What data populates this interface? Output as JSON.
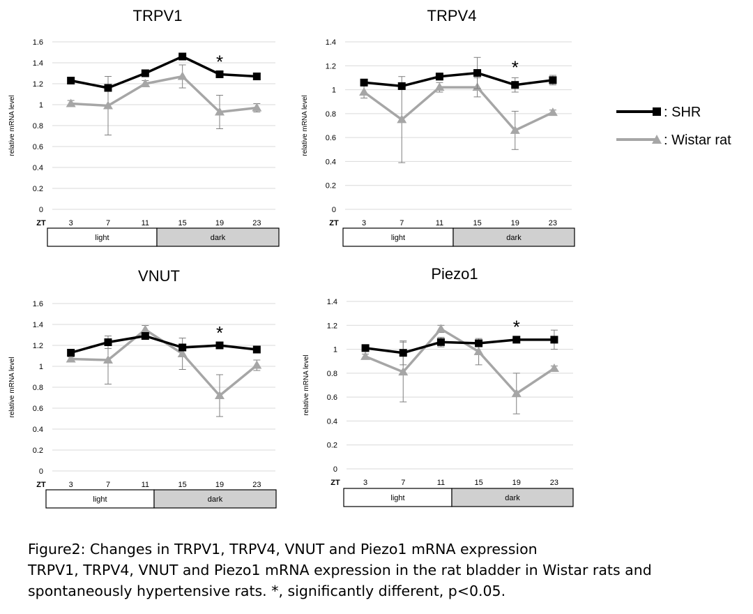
{
  "chart_data": [
    {
      "type": "line",
      "title": "TRPV1",
      "ylabel": "relative mRNA level",
      "xlabel": "ZT",
      "categories": [
        "3",
        "7",
        "11",
        "15",
        "19",
        "23"
      ],
      "yticks": [
        "0",
        "0.2",
        "0.4",
        "0.6",
        "0.8",
        "1",
        "1.2",
        "1.4",
        "1.6"
      ],
      "ylim": [
        0,
        1.6
      ],
      "series": [
        {
          "name": "SHR",
          "values": [
            1.23,
            1.16,
            1.3,
            1.46,
            1.29,
            1.27
          ],
          "err": [
            0.02,
            0.02,
            0.02,
            0.02,
            0.02,
            0.02
          ]
        },
        {
          "name": "Wistar rat",
          "values": [
            1.01,
            0.99,
            1.2,
            1.27,
            0.93,
            0.97
          ],
          "err": [
            0.03,
            0.28,
            0.03,
            0.11,
            0.16,
            0.04
          ]
        }
      ],
      "significance": {
        "index": 4,
        "mark": "*"
      },
      "phase": {
        "light": "light",
        "dark": "dark"
      }
    },
    {
      "type": "line",
      "title": "TRPV4",
      "ylabel": "relative mRNA level",
      "xlabel": "ZT",
      "categories": [
        "3",
        "7",
        "11",
        "15",
        "19",
        "23"
      ],
      "yticks": [
        "0",
        "0.2",
        "0.4",
        "0.6",
        "0.8",
        "1",
        "1.2",
        "1.4"
      ],
      "ylim": [
        0,
        1.4
      ],
      "series": [
        {
          "name": "SHR",
          "values": [
            1.06,
            1.03,
            1.11,
            1.14,
            1.04,
            1.08
          ],
          "err": [
            0.02,
            0.02,
            0.03,
            0.13,
            0.06,
            0.04
          ]
        },
        {
          "name": "Wistar rat",
          "values": [
            0.98,
            0.75,
            1.02,
            1.02,
            0.66,
            0.81
          ],
          "err": [
            0.05,
            0.36,
            0.04,
            0.08,
            0.16,
            0.02
          ]
        }
      ],
      "significance": {
        "index": 4,
        "mark": "*"
      },
      "phase": {
        "light": "light",
        "dark": "dark"
      }
    },
    {
      "type": "line",
      "title": "VNUT",
      "ylabel": "relative mRNA level",
      "xlabel": "ZT",
      "categories": [
        "3",
        "7",
        "11",
        "15",
        "19",
        "23"
      ],
      "yticks": [
        "0",
        "0.2",
        "0.4",
        "0.6",
        "0.8",
        "1",
        "1.2",
        "1.4",
        "1.6"
      ],
      "ylim": [
        0,
        1.6
      ],
      "series": [
        {
          "name": "SHR",
          "values": [
            1.13,
            1.23,
            1.29,
            1.18,
            1.2,
            1.16
          ],
          "err": [
            0.02,
            0.06,
            0.02,
            0.02,
            0.02,
            0.02
          ]
        },
        {
          "name": "Wistar rat",
          "values": [
            1.07,
            1.06,
            1.35,
            1.12,
            0.72,
            1.01
          ],
          "err": [
            0.02,
            0.23,
            0.04,
            0.15,
            0.2,
            0.05
          ]
        }
      ],
      "significance": {
        "index": 4,
        "mark": "*"
      },
      "phase": {
        "light": "light",
        "dark": "dark"
      }
    },
    {
      "type": "line",
      "title": "Piezo1",
      "ylabel": "relative mRNA level",
      "xlabel": "ZT",
      "categories": [
        "3",
        "7",
        "11",
        "15",
        "19",
        "23"
      ],
      "yticks": [
        "0",
        "0.2",
        "0.4",
        "0.6",
        "0.8",
        "1",
        "1.2",
        "1.4"
      ],
      "ylim": [
        0,
        1.4
      ],
      "series": [
        {
          "name": "SHR",
          "values": [
            1.01,
            0.97,
            1.06,
            1.05,
            1.08,
            1.08
          ],
          "err": [
            0.02,
            0.1,
            0.04,
            0.02,
            0.02,
            0.08
          ]
        },
        {
          "name": "Wistar rat",
          "values": [
            0.94,
            0.81,
            1.17,
            0.98,
            0.63,
            0.84
          ],
          "err": [
            0.02,
            0.25,
            0.03,
            0.11,
            0.17,
            0.02
          ]
        }
      ],
      "significance": {
        "index": 4,
        "mark": "*"
      },
      "phase": {
        "light": "light",
        "dark": "dark"
      }
    }
  ],
  "legend": [
    {
      "label": ": SHR",
      "color": "#000000",
      "marker": "square"
    },
    {
      "label": ": Wistar rat",
      "color": "#a6a6a6",
      "marker": "triangle"
    }
  ],
  "caption": {
    "line1": "Figure2:  Changes in TRPV1, TRPV4, VNUT and Piezo1 mRNA expression",
    "line2": "TRPV1, TRPV4, VNUT and Piezo1 mRNA expression in the rat bladder in Wistar rats and",
    "line3": "spontaneously  hypertensive rats. *, significantly different, p<0.05."
  }
}
